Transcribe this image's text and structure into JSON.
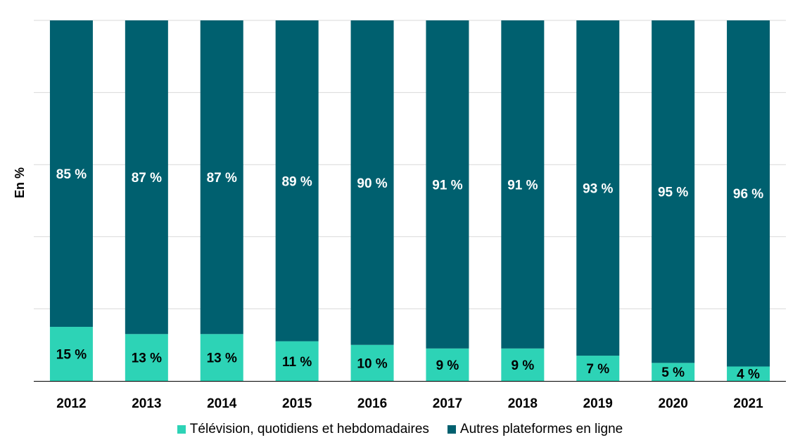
{
  "chart_data": {
    "type": "bar",
    "stacked": true,
    "ylabel": "En %",
    "ylim": [
      0,
      100
    ],
    "grid": true,
    "legend_position": "bottom",
    "categories": [
      "2012",
      "2013",
      "2014",
      "2015",
      "2016",
      "2017",
      "2018",
      "2019",
      "2020",
      "2021"
    ],
    "series": [
      {
        "name": "Télévision, quotidiens et hebdomadaires",
        "color": "#2DD3B6",
        "values": [
          15,
          13,
          13,
          11,
          10,
          9,
          9,
          7,
          5,
          4
        ],
        "labels": [
          "15 %",
          "13 %",
          "13 %",
          "11 %",
          "10 %",
          "9 %",
          "9 %",
          "7 %",
          "5 %",
          "4 %"
        ]
      },
      {
        "name": "Autres plateformes en ligne",
        "color": "#00606F",
        "values": [
          85,
          87,
          87,
          89,
          90,
          91,
          91,
          93,
          95,
          96
        ],
        "labels": [
          "85 %",
          "87 %",
          "87 %",
          "89 %",
          "90 %",
          "91 %",
          "91 %",
          "93 %",
          "95 %",
          "96 %"
        ]
      }
    ]
  }
}
